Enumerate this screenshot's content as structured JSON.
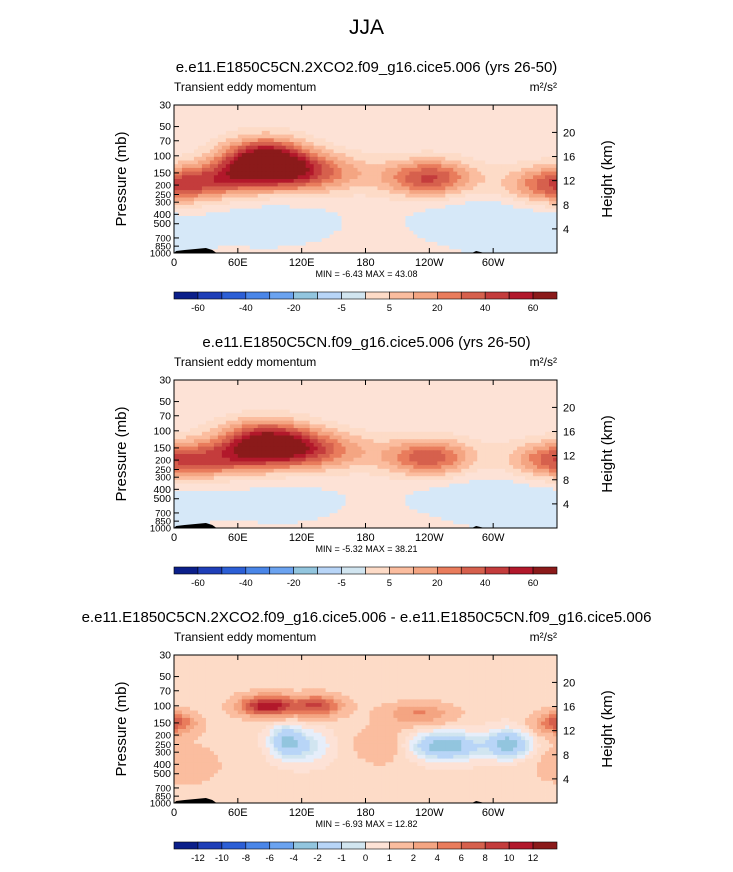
{
  "page_title": "JJA",
  "colors": {
    "warm": [
      "#fddbc7",
      "#fbbd9f",
      "#f4a582",
      "#e97c5c",
      "#d6604d",
      "#c43c3c",
      "#b2182b",
      "#8b1a1a"
    ],
    "cool": [
      "#d1e5f0",
      "#b8d5f7",
      "#92c5de",
      "#6ba3f0",
      "#4a86e8",
      "#2c5fd6",
      "#1f3fb8",
      "#0b1f8a"
    ],
    "neutral": "#fde2d6",
    "topography": "#000000"
  },
  "chart_data": [
    {
      "type": "heatmap",
      "title": "e.e11.E1850C5CN.2XCO2.f09_g16.cice5.006 (yrs 26-50)",
      "subtitle_left": "Transient eddy momentum",
      "units": "m²/s²",
      "ylabel": "Pressure (mb)",
      "ylabel_right": "Height (km)",
      "x_ticks": [
        "0",
        "60E",
        "120E",
        "180",
        "120W",
        "60W"
      ],
      "x_values": [
        0,
        60,
        120,
        180,
        240,
        300
      ],
      "xlim": [
        0,
        360
      ],
      "pressure_ticks": [
        "30",
        "50",
        "70",
        "100",
        "150",
        "200",
        "250",
        "300",
        "400",
        "500",
        "700",
        "850",
        "1000"
      ],
      "pressure_values": [
        30,
        50,
        70,
        100,
        150,
        200,
        250,
        300,
        400,
        500,
        700,
        850,
        1000
      ],
      "height_ticks": [
        "20",
        "16",
        "12",
        "8",
        "4"
      ],
      "height_values": [
        20,
        16,
        12,
        8,
        4
      ],
      "stats_text": "MIN = -6.43  MAX = 43.08",
      "min": -6.43,
      "max": 43.08,
      "colorbar_labels": [
        "-60",
        "-40",
        "-20",
        "-5",
        "5",
        "20",
        "40",
        "60"
      ],
      "colorbar_levels": [
        -60,
        -40,
        -20,
        -5,
        5,
        20,
        40,
        60
      ],
      "features": [
        {
          "lon": 0,
          "p": 200,
          "dlon": 32,
          "dz": 2.2,
          "amp": 30,
          "wrap": true
        },
        {
          "lon": 85,
          "p": 110,
          "dlon": 28,
          "dz": 2.5,
          "amp": 43
        },
        {
          "lon": 120,
          "p": 150,
          "dlon": 40,
          "dz": 2.3,
          "amp": 28
        },
        {
          "lon": 50,
          "p": 170,
          "dlon": 25,
          "dz": 2.0,
          "amp": 15
        },
        {
          "lon": 240,
          "p": 170,
          "dlon": 30,
          "dz": 2.2,
          "amp": 30
        },
        {
          "lon": 330,
          "p": 500,
          "dlon": 40,
          "dz": 3.5,
          "amp": -5
        },
        {
          "lon": 90,
          "p": 450,
          "dlon": 45,
          "dz": 3.0,
          "amp": -4
        },
        {
          "lon": 270,
          "p": 400,
          "dlon": 35,
          "dz": 3.0,
          "amp": -4
        }
      ]
    },
    {
      "type": "heatmap",
      "title": "e.e11.E1850C5CN.f09_g16.cice5.006 (yrs 26-50)",
      "subtitle_left": "Transient eddy momentum",
      "units": "m²/s²",
      "ylabel": "Pressure (mb)",
      "ylabel_right": "Height (km)",
      "x_ticks": [
        "0",
        "60E",
        "120E",
        "180",
        "120W",
        "60W"
      ],
      "x_values": [
        0,
        60,
        120,
        180,
        240,
        300
      ],
      "xlim": [
        0,
        360
      ],
      "pressure_ticks": [
        "30",
        "50",
        "70",
        "100",
        "150",
        "200",
        "250",
        "300",
        "400",
        "500",
        "700",
        "850",
        "1000"
      ],
      "pressure_values": [
        30,
        50,
        70,
        100,
        150,
        200,
        250,
        300,
        400,
        500,
        700,
        850,
        1000
      ],
      "height_ticks": [
        "20",
        "16",
        "12",
        "8",
        "4"
      ],
      "height_values": [
        20,
        16,
        12,
        8,
        4
      ],
      "stats_text": "MIN = -5.32  MAX = 38.21",
      "min": -5.32,
      "max": 38.21,
      "colorbar_labels": [
        "-60",
        "-40",
        "-20",
        "-5",
        "5",
        "20",
        "40",
        "60"
      ],
      "colorbar_levels": [
        -60,
        -40,
        -20,
        -5,
        5,
        20,
        40,
        60
      ],
      "features": [
        {
          "lon": 0,
          "p": 200,
          "dlon": 30,
          "dz": 2.2,
          "amp": 28,
          "wrap": true
        },
        {
          "lon": 85,
          "p": 130,
          "dlon": 30,
          "dz": 2.5,
          "amp": 36
        },
        {
          "lon": 125,
          "p": 160,
          "dlon": 40,
          "dz": 2.3,
          "amp": 26
        },
        {
          "lon": 50,
          "p": 200,
          "dlon": 25,
          "dz": 2.0,
          "amp": 14
        },
        {
          "lon": 240,
          "p": 190,
          "dlon": 30,
          "dz": 2.2,
          "amp": 28
        },
        {
          "lon": 330,
          "p": 500,
          "dlon": 40,
          "dz": 3.5,
          "amp": -5
        },
        {
          "lon": 100,
          "p": 500,
          "dlon": 45,
          "dz": 3.0,
          "amp": -3
        },
        {
          "lon": 260,
          "p": 400,
          "dlon": 35,
          "dz": 3.0,
          "amp": -3
        }
      ]
    },
    {
      "type": "heatmap",
      "title": "e.e11.E1850C5CN.2XCO2.f09_g16.cice5.006 - e.e11.E1850C5CN.f09_g16.cice5.006",
      "subtitle_left": "Transient eddy momentum",
      "units": "m²/s²",
      "ylabel": "Pressure (mb)",
      "ylabel_right": "Height (km)",
      "x_ticks": [
        "0",
        "60E",
        "120E",
        "180",
        "120W",
        "60W"
      ],
      "x_values": [
        0,
        60,
        120,
        180,
        240,
        300
      ],
      "xlim": [
        0,
        360
      ],
      "pressure_ticks": [
        "30",
        "50",
        "70",
        "100",
        "150",
        "200",
        "250",
        "300",
        "400",
        "500",
        "700",
        "850",
        "1000"
      ],
      "pressure_values": [
        30,
        50,
        70,
        100,
        150,
        200,
        250,
        300,
        400,
        500,
        700,
        850,
        1000
      ],
      "height_ticks": [
        "20",
        "16",
        "12",
        "8",
        "4"
      ],
      "height_values": [
        20,
        16,
        12,
        8,
        4
      ],
      "stats_text": "MIN = -6.93  MAX = 12.82",
      "min": -6.93,
      "max": 12.82,
      "colorbar_labels": [
        "-12",
        "-10",
        "-8",
        "-6",
        "-4",
        "-2",
        "-1",
        "0",
        "1",
        "2",
        "4",
        "6",
        "8",
        "10",
        "12"
      ],
      "colorbar_levels": [
        -12,
        -10,
        -8,
        -6,
        -4,
        -2,
        -1,
        0,
        1,
        2,
        4,
        6,
        8,
        10,
        12
      ],
      "features": [
        {
          "lon": 88,
          "p": 100,
          "dlon": 18,
          "dz": 1.2,
          "amp": 12.8
        },
        {
          "lon": 135,
          "p": 100,
          "dlon": 16,
          "dz": 1.2,
          "amp": 9
        },
        {
          "lon": 0,
          "p": 150,
          "dlon": 14,
          "dz": 1.3,
          "amp": 8,
          "wrap": true
        },
        {
          "lon": 230,
          "p": 120,
          "dlon": 22,
          "dz": 1.2,
          "amp": 5
        },
        {
          "lon": 255,
          "p": 260,
          "dlon": 22,
          "dz": 1.5,
          "amp": -6.9
        },
        {
          "lon": 315,
          "p": 250,
          "dlon": 14,
          "dz": 1.6,
          "amp": -6.5
        },
        {
          "lon": 105,
          "p": 230,
          "dlon": 10,
          "dz": 1.8,
          "amp": -5
        },
        {
          "lon": 125,
          "p": 260,
          "dlon": 15,
          "dz": 1.8,
          "amp": -3
        },
        {
          "lon": 10,
          "p": 400,
          "dlon": 30,
          "dz": 3.0,
          "amp": 1.5
        },
        {
          "lon": 195,
          "p": 250,
          "dlon": 20,
          "dz": 2.5,
          "amp": 2
        }
      ]
    }
  ]
}
